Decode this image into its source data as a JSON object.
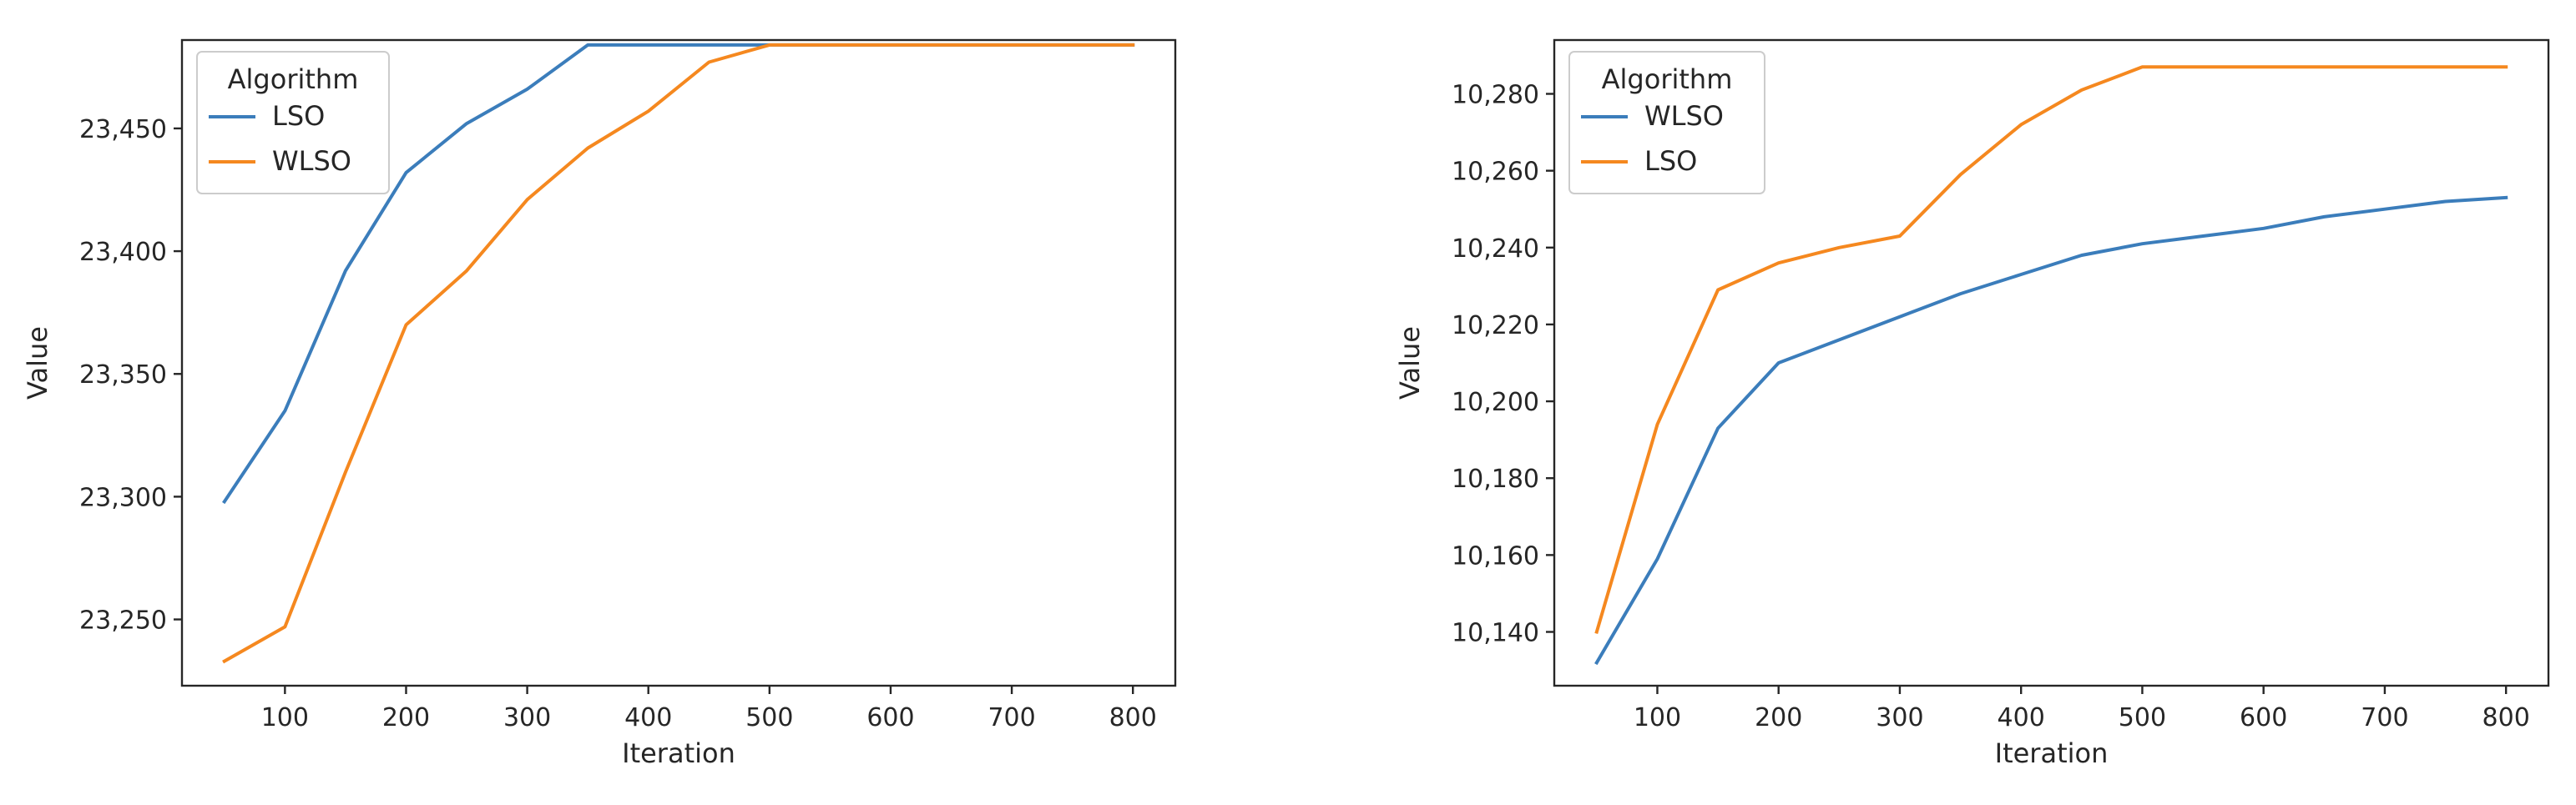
{
  "colors": {
    "blue": "#3b7dbb",
    "orange": "#f5881f",
    "axis": "#262626",
    "legend_border": "#cccccc"
  },
  "chart_data": [
    {
      "type": "line",
      "xlabel": "Iteration",
      "ylabel": "Value",
      "xlim": [
        15,
        835
      ],
      "ylim": [
        23223,
        23486
      ],
      "xticks": [
        100,
        200,
        300,
        400,
        500,
        600,
        700,
        800
      ],
      "xtick_labels": [
        "100",
        "200",
        "300",
        "400",
        "500",
        "600",
        "700",
        "800"
      ],
      "yticks": [
        23250,
        23300,
        23350,
        23400,
        23450
      ],
      "ytick_labels": [
        "23,250",
        "23,300",
        "23,350",
        "23,400",
        "23,450"
      ],
      "grid": false,
      "legend": {
        "title": "Algorithm",
        "placement": "top-left"
      },
      "series": [
        {
          "name": "LSO",
          "color": "#3b7dbb",
          "x": [
            50,
            100,
            150,
            200,
            250,
            300,
            350,
            400,
            450,
            500,
            550,
            600,
            650,
            700,
            750,
            800
          ],
          "y": [
            23298,
            23335,
            23392,
            23432,
            23452,
            23466,
            23484,
            23484,
            23484,
            23484,
            23484,
            23484,
            23484,
            23484,
            23484,
            23484
          ]
        },
        {
          "name": "WLSO",
          "color": "#f5881f",
          "x": [
            50,
            100,
            150,
            200,
            250,
            300,
            350,
            400,
            450,
            500,
            550,
            600,
            650,
            700,
            750,
            800
          ],
          "y": [
            23233,
            23247,
            23310,
            23370,
            23392,
            23421,
            23442,
            23457,
            23477,
            23484,
            23484,
            23484,
            23484,
            23484,
            23484,
            23484
          ]
        }
      ]
    },
    {
      "type": "line",
      "xlabel": "Iteration",
      "ylabel": "Value",
      "xlim": [
        15,
        835
      ],
      "ylim": [
        10126,
        10294
      ],
      "xticks": [
        100,
        200,
        300,
        400,
        500,
        600,
        700,
        800
      ],
      "xtick_labels": [
        "100",
        "200",
        "300",
        "400",
        "500",
        "600",
        "700",
        "800"
      ],
      "yticks": [
        10140,
        10160,
        10180,
        10200,
        10220,
        10240,
        10260,
        10280
      ],
      "ytick_labels": [
        "10,140",
        "10,160",
        "10,180",
        "10,200",
        "10,220",
        "10,240",
        "10,260",
        "10,280"
      ],
      "grid": false,
      "legend": {
        "title": "Algorithm",
        "placement": "top-left"
      },
      "series": [
        {
          "name": "WLSO",
          "color": "#3b7dbb",
          "x": [
            50,
            100,
            150,
            200,
            250,
            300,
            350,
            400,
            450,
            500,
            550,
            600,
            650,
            700,
            750,
            800
          ],
          "y": [
            10132,
            10159,
            10193,
            10210,
            10216,
            10222,
            10228,
            10233,
            10238,
            10241,
            10243,
            10245,
            10248,
            10250,
            10252,
            10253
          ]
        },
        {
          "name": "LSO",
          "color": "#f5881f",
          "x": [
            50,
            100,
            150,
            200,
            250,
            300,
            350,
            400,
            450,
            500,
            550,
            600,
            650,
            700,
            750,
            800
          ],
          "y": [
            10140,
            10194,
            10229,
            10236,
            10240,
            10243,
            10259,
            10272,
            10281,
            10287,
            10287,
            10287,
            10287,
            10287,
            10287,
            10287
          ]
        }
      ]
    }
  ]
}
